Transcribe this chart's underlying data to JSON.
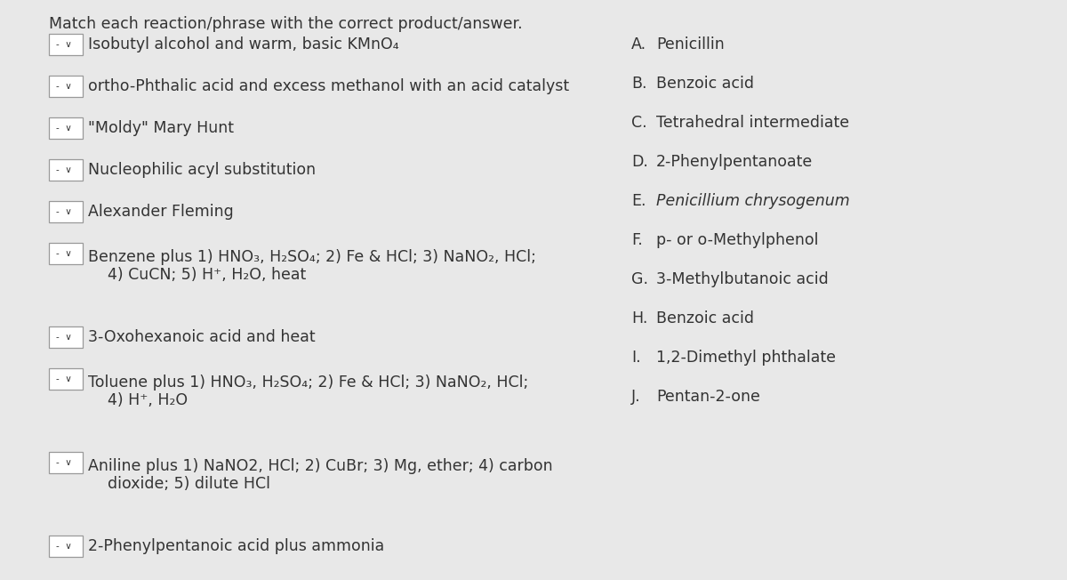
{
  "title": "Match each reaction/phrase with the correct product/answer.",
  "background_color": "#e8e8e8",
  "left_items": [
    {
      "line1": "Isobutyl alcohol and warm, basic KMnO₄",
      "line2": null,
      "row": 0
    },
    {
      "line1": "ortho-Phthalic acid and excess methanol with an acid catalyst",
      "line2": null,
      "row": 1,
      "italic_prefix": "ortho"
    },
    {
      "line1": "\"Moldy\" Mary Hunt",
      "line2": null,
      "row": 2
    },
    {
      "line1": "Nucleophilic acyl substitution",
      "line2": null,
      "row": 3
    },
    {
      "line1": "Alexander Fleming",
      "line2": null,
      "row": 4
    },
    {
      "line1": "Benzene plus 1) HNO₃, H₂SO₄; 2) Fe & HCl; 3) NaNO₂, HCl;",
      "line2": "    4) CuCN; 5) H⁺, H₂O, heat",
      "row": 5
    },
    {
      "line1": "3-Oxohexanoic acid and heat",
      "line2": null,
      "row": 7
    },
    {
      "line1": "Toluene plus 1) HNO₃, H₂SO₄; 2) Fe & HCl; 3) NaNO₂, HCl;",
      "line2": "    4) H⁺, H₂O",
      "row": 8
    },
    {
      "line1": "Aniline plus 1) NaNO2, HCl; 2) CuBr; 3) Mg, ether; 4) carbon",
      "line2": "    dioxide; 5) dilute HCl",
      "row": 10
    },
    {
      "line1": "2-Phenylpentanoic acid plus ammonia",
      "line2": null,
      "row": 12
    }
  ],
  "right_items": [
    {
      "label": "A.",
      "text": "Penicillin",
      "row": 0,
      "italic": false
    },
    {
      "label": "B.",
      "text": "Benzoic acid",
      "row": 1,
      "italic": false
    },
    {
      "label": "C.",
      "text": "Tetrahedral intermediate",
      "row": 2,
      "italic": false
    },
    {
      "label": "D.",
      "text": "2-Phenylpentanoate",
      "row": 3,
      "italic": false
    },
    {
      "label": "E.",
      "text": "Penicillium chrysogenum",
      "row": 4,
      "italic": true
    },
    {
      "label": "F.",
      "text": "p- or o-Methylphenol",
      "row": 5,
      "italic": false
    },
    {
      "label": "G.",
      "text": "3-Methylbutanoic acid",
      "row": 6,
      "italic": false
    },
    {
      "label": "H.",
      "text": "Benzoic acid",
      "row": 7,
      "italic": false
    },
    {
      "label": "I.",
      "text": "1,2-Dimethyl phthalate",
      "row": 8,
      "italic": false
    },
    {
      "label": "J.",
      "text": "Pentan-2-one",
      "row": 9,
      "italic": false
    }
  ],
  "font_size": 12.5,
  "title_font_size": 12.5,
  "box_color": "white",
  "box_edge_color": "#999999",
  "text_color": "#333333"
}
